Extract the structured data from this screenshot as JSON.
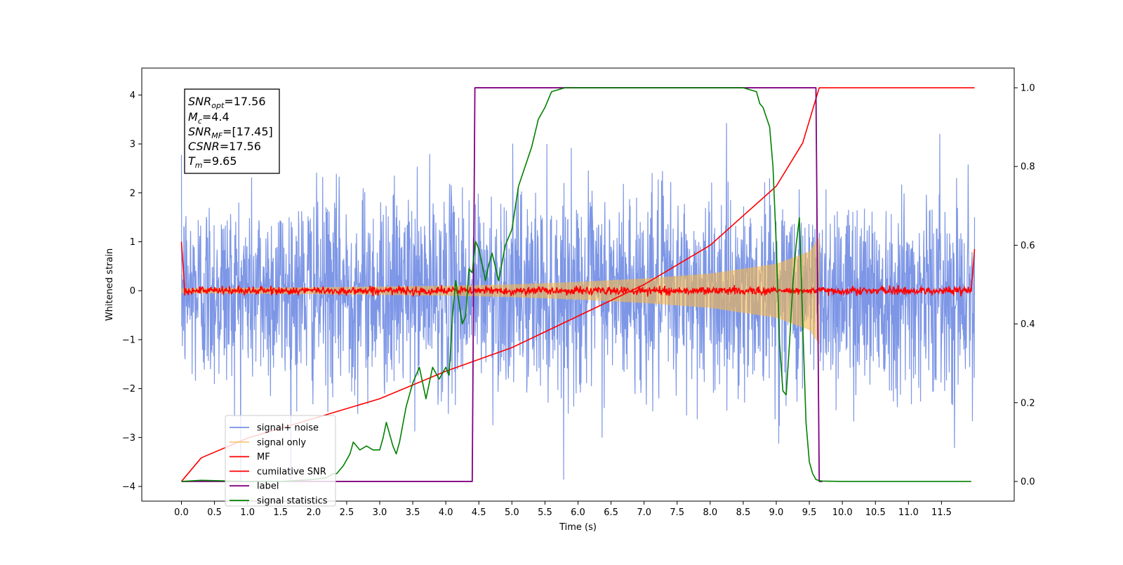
{
  "chart_data": {
    "type": "line",
    "xlabel": "Time (s)",
    "ylabel": "Whitened strain",
    "xlim": [
      -0.6,
      12.6
    ],
    "ylim": [
      -4.3,
      4.55
    ],
    "y2lim": [
      -0.05,
      1.05
    ],
    "x_ticks": [
      "0.0",
      "0.5",
      "1.0",
      "1.5",
      "2.0",
      "2.5",
      "3.0",
      "3.5",
      "4.0",
      "4.5",
      "5.0",
      "5.5",
      "6.0",
      "6.5",
      "7.0",
      "7.5",
      "8.0",
      "8.5",
      "9.0",
      "9.5",
      "10.0",
      "10.5",
      "11.0",
      "11.5"
    ],
    "y_ticks": [
      "4",
      "3",
      "2",
      "1",
      "0",
      "−1",
      "−2",
      "−3",
      "−4"
    ],
    "y2_ticks": [
      "1.0",
      "0.8",
      "0.6",
      "0.4",
      "0.2",
      "0.0"
    ],
    "grid": false,
    "legend_position": "lower-left",
    "annotation": {
      "snr_opt": {
        "main": "SNR",
        "sub": "opt",
        "value": "=17.56"
      },
      "mc": {
        "main": "M",
        "sub": "c",
        "value": "=4.4"
      },
      "snr_mf": {
        "main": "SNR",
        "sub": "MF",
        "value": "=[17.45]"
      },
      "csnr": {
        "main": "CSNR",
        "sub": "",
        "value": "=17.56"
      },
      "tm": {
        "main": "T",
        "sub": "m",
        "value": "=9.65"
      }
    },
    "series": [
      {
        "name": "signal+ noise",
        "color": "#7690e5",
        "axis": "left",
        "kind": "gaussian noise",
        "x_range": [
          0.0,
          12.0
        ],
        "std": 1.0
      },
      {
        "name": "signal only",
        "color": "#f5b84c",
        "axis": "left",
        "kind": "chirp envelope",
        "envelope_x": [
          0.0,
          2.0,
          4.0,
          5.0,
          6.0,
          7.0,
          8.0,
          9.0,
          9.5,
          9.65
        ],
        "envelope_y": [
          0.05,
          0.07,
          0.1,
          0.13,
          0.18,
          0.25,
          0.35,
          0.55,
          0.8,
          1.1
        ]
      },
      {
        "name": "MF",
        "color": "#ff0000",
        "axis": "left",
        "kind": "noisy baseline",
        "x_range": [
          0.0,
          12.0
        ],
        "mean": 0.0,
        "std": 0.04
      },
      {
        "name": "cumilative SNR",
        "color": "#ff0000",
        "axis": "right",
        "x": [
          0.0,
          0.3,
          1.0,
          2.0,
          3.0,
          4.0,
          5.0,
          6.0,
          7.0,
          8.0,
          9.0,
          9.4,
          9.65,
          12.0
        ],
        "values": [
          0.0,
          0.06,
          0.11,
          0.16,
          0.21,
          0.28,
          0.34,
          0.42,
          0.5,
          0.6,
          0.75,
          0.86,
          1.0,
          1.0
        ]
      },
      {
        "name": "label",
        "color": "#800080",
        "axis": "right",
        "x": [
          0.0,
          4.4,
          4.44,
          9.6,
          9.65,
          9.7
        ],
        "values": [
          0.0,
          0.0,
          1.0,
          1.0,
          0.0,
          0.0
        ]
      },
      {
        "name": "signal statistics",
        "color": "#008000",
        "axis": "right",
        "x": [
          0.0,
          0.3,
          1.0,
          1.5,
          2.0,
          2.2,
          2.3,
          2.35,
          2.45,
          2.55,
          2.6,
          2.7,
          2.8,
          2.9,
          3.0,
          3.05,
          3.1,
          3.2,
          3.25,
          3.3,
          3.4,
          3.5,
          3.6,
          3.7,
          3.8,
          3.9,
          4.0,
          4.05,
          4.1,
          4.15,
          4.25,
          4.3,
          4.35,
          4.4,
          4.45,
          4.5,
          4.6,
          4.65,
          4.7,
          4.8,
          4.9,
          5.0,
          5.1,
          5.2,
          5.3,
          5.4,
          5.5,
          5.6,
          5.8,
          6.0,
          6.2,
          6.5,
          7.0,
          7.5,
          8.0,
          8.5,
          8.7,
          8.75,
          8.8,
          8.9,
          8.95,
          9.0,
          9.05,
          9.1,
          9.15,
          9.2,
          9.25,
          9.3,
          9.35,
          9.4,
          9.45,
          9.5,
          9.55,
          9.6,
          9.65,
          9.7,
          10.0,
          11.0,
          11.95
        ],
        "values": [
          0.0,
          0.003,
          0.0,
          0.0,
          0.005,
          0.01,
          0.02,
          0.02,
          0.04,
          0.07,
          0.1,
          0.08,
          0.09,
          0.08,
          0.08,
          0.11,
          0.15,
          0.09,
          0.07,
          0.1,
          0.19,
          0.25,
          0.29,
          0.21,
          0.29,
          0.26,
          0.29,
          0.27,
          0.42,
          0.51,
          0.4,
          0.42,
          0.54,
          0.53,
          0.61,
          0.59,
          0.51,
          0.55,
          0.58,
          0.51,
          0.6,
          0.64,
          0.75,
          0.8,
          0.85,
          0.92,
          0.95,
          0.99,
          1.0,
          1.0,
          1.0,
          1.0,
          1.0,
          1.0,
          1.0,
          1.0,
          0.99,
          0.96,
          0.95,
          0.9,
          0.8,
          0.6,
          0.35,
          0.23,
          0.22,
          0.35,
          0.5,
          0.6,
          0.67,
          0.4,
          0.15,
          0.05,
          0.02,
          0.005,
          0.002,
          0.001,
          0.0,
          0.0,
          0.0
        ]
      }
    ]
  }
}
